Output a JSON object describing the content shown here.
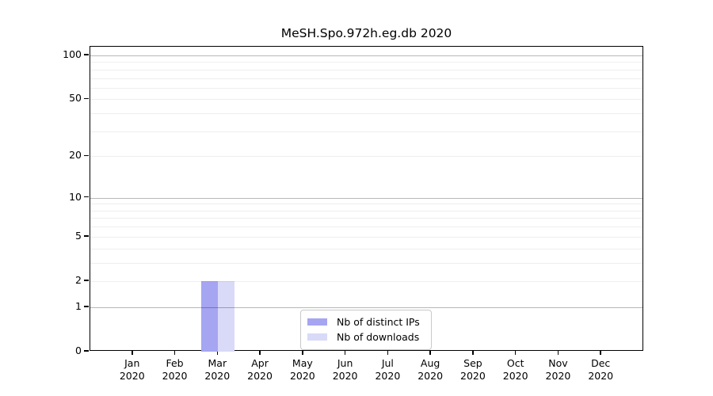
{
  "chart_data": {
    "type": "bar",
    "title": "MeSH.Spo.972h.eg.db 2020",
    "categories": [
      "Jan",
      "Feb",
      "Mar",
      "Apr",
      "May",
      "Jun",
      "Jul",
      "Aug",
      "Sep",
      "Oct",
      "Nov",
      "Dec"
    ],
    "year": "2020",
    "series": [
      {
        "name": "Nb of distinct IPs",
        "color": "#a5a5f2",
        "values": [
          0,
          0,
          2,
          0,
          0,
          0,
          0,
          0,
          0,
          0,
          0,
          0
        ]
      },
      {
        "name": "Nb of downloads",
        "color": "#d9d9f8",
        "values": [
          0,
          0,
          2,
          0,
          0,
          0,
          0,
          0,
          0,
          0,
          0,
          0
        ]
      }
    ],
    "y_axis": {
      "scale": "log1p",
      "range": [
        0,
        100
      ],
      "tick_values": [
        100,
        50,
        20,
        10,
        5,
        2,
        1,
        0
      ],
      "tick_labels": [
        "100",
        "50",
        "20",
        "10",
        "5",
        "2",
        "1",
        "0"
      ],
      "major_gridlines": [
        1,
        10,
        100
      ],
      "minor_gridlines": [
        2,
        3,
        4,
        5,
        6,
        7,
        8,
        9,
        20,
        30,
        40,
        50,
        60,
        70,
        80,
        90
      ]
    },
    "legend_position": "bottom-center-inside",
    "grid": true
  }
}
